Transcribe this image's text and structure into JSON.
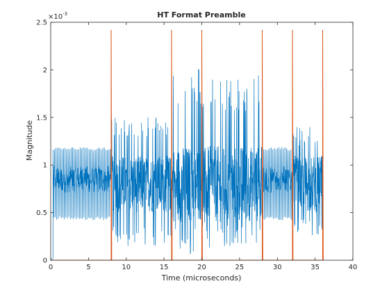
{
  "chart_data": {
    "type": "line",
    "title": "HT Format Preamble",
    "xlabel": "Time (microseconds)",
    "ylabel": "Magnitude",
    "y_exponent_label": "×10",
    "y_exponent_power": "-3",
    "xlim": [
      0,
      40
    ],
    "ylim": [
      0,
      0.0025
    ],
    "x_ticks": [
      0,
      5,
      10,
      15,
      20,
      25,
      30,
      35,
      40
    ],
    "y_ticks": [
      0,
      0.0005,
      0.001,
      0.0015,
      0.002,
      0.0025
    ],
    "x_tick_labels": [
      "0",
      "5",
      "10",
      "15",
      "20",
      "25",
      "30",
      "35",
      "40"
    ],
    "y_tick_labels": [
      "0",
      "0.5",
      "1",
      "1.5",
      "2",
      "2.5"
    ],
    "grid": false,
    "series": [
      {
        "color": "#0072bd",
        "segments": [
          {
            "x": [
              0,
              0.3
            ],
            "min": 0.0,
            "max": 2e-05,
            "style": "ramp"
          },
          {
            "x": [
              0.3,
              8.0
            ],
            "min": 0.00042,
            "max": 0.00119,
            "center": 0.00085,
            "style": "lstf"
          },
          {
            "x": [
              8.0,
              16.0
            ],
            "min": 0.00015,
            "max": 0.0015,
            "center": 0.0008,
            "style": "ltf"
          },
          {
            "x": [
              16.0,
              20.0
            ],
            "min": 5e-05,
            "max": 0.00202,
            "center": 0.0008,
            "style": "ofdm"
          },
          {
            "x": [
              20.0,
              28.0
            ],
            "min": 0.0001,
            "max": 0.00195,
            "center": 0.0008,
            "style": "ofdm"
          },
          {
            "x": [
              28.0,
              32.0
            ],
            "min": 0.00042,
            "max": 0.00119,
            "center": 0.00085,
            "style": "lstf"
          },
          {
            "x": [
              32.0,
              36.0
            ],
            "min": 0.00025,
            "max": 0.0014,
            "center": 0.0008,
            "style": "ltf"
          }
        ]
      },
      {
        "color": "#d95319",
        "baseline": 0.0,
        "spike_height": 0.00242,
        "spike_x": [
          8.0,
          16.0,
          20.0,
          28.0,
          32.0,
          36.0
        ]
      }
    ]
  }
}
